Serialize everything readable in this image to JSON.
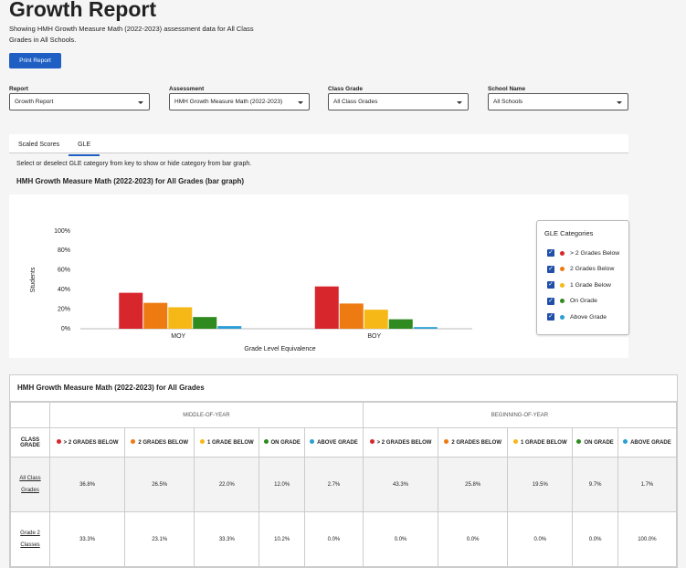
{
  "header": {
    "title": "Growth Report",
    "description": "Showing HMH Growth Measure Math (2022-2023) assessment data for All Class Grades in All Schools."
  },
  "print_button": "Print Report",
  "filters": [
    {
      "label": "Report",
      "value": "Growth Report"
    },
    {
      "label": "Assessment",
      "value": "HMH Growth Measure Math (2022-2023)"
    },
    {
      "label": "Class Grade",
      "value": "All Class Grades"
    },
    {
      "label": "School Name",
      "value": "All Schools"
    }
  ],
  "tabs": [
    "Scaled Scores",
    "GLE"
  ],
  "instruction": "Select or deselect GLE category from key to show or hide category from bar graph.",
  "chart_data": {
    "type": "bar",
    "title": "HMH Growth Measure Math (2022-2023) for All Grades (bar graph)",
    "categories": [
      "MOY",
      "BOY"
    ],
    "xlabel": "Grade Level Equivalence",
    "ylabel": "Students",
    "ylim": [
      0,
      100
    ],
    "yticks": [
      {
        "value": 0,
        "label": "0%"
      },
      {
        "value": 20,
        "label": "20%"
      },
      {
        "value": 40,
        "label": "40%"
      },
      {
        "value": 60,
        "label": "60%"
      },
      {
        "value": 80,
        "label": "80%"
      },
      {
        "value": 100,
        "label": "100%"
      }
    ],
    "legend_title": "GLE Categories",
    "series": [
      {
        "name": "> 2 Grades Below",
        "color": "#d8262d",
        "values": [
          36.8,
          43.3
        ]
      },
      {
        "name": "2 Grades Below",
        "color": "#ee7a12",
        "values": [
          26.5,
          25.8
        ]
      },
      {
        "name": "1 Grade Below",
        "color": "#f6b817",
        "values": [
          22.0,
          19.5
        ]
      },
      {
        "name": "On Grade",
        "color": "#2f8a1f",
        "values": [
          12.0,
          9.7
        ]
      },
      {
        "name": "Above Grade",
        "color": "#2b9fd5",
        "values": [
          2.7,
          1.7
        ]
      }
    ]
  },
  "table": {
    "title": "HMH Growth Measure Math (2022-2023) for All Grades",
    "groups": [
      "MIDDLE-OF-YEAR",
      "BEGINNING-OF-YEAR"
    ],
    "row_header": "CLASS GRADE",
    "columns": [
      "> 2 GRADES BELOW",
      "2 GRADES BELOW",
      "1 GRADE BELOW",
      "ON GRADE",
      "ABOVE GRADE"
    ],
    "rows": [
      {
        "label": "All Class Grades",
        "values": [
          "36.8%",
          "26.5%",
          "22.0%",
          "12.0%",
          "2.7%",
          "43.3%",
          "25.8%",
          "19.5%",
          "9.7%",
          "1.7%"
        ]
      },
      {
        "label": "Grade 2 Classes",
        "values": [
          "33.3%",
          "23.1%",
          "33.3%",
          "10.2%",
          "0.0%",
          "0.0%",
          "0.0%",
          "0.0%",
          "0.0%",
          "100.0%"
        ]
      }
    ]
  }
}
